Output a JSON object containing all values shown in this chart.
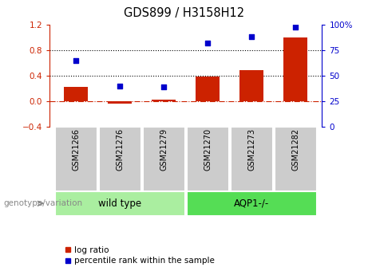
{
  "title": "GDS899 / H3158H12",
  "categories": [
    "GSM21266",
    "GSM21276",
    "GSM21279",
    "GSM21270",
    "GSM21273",
    "GSM21282"
  ],
  "log_ratio": [
    0.22,
    -0.04,
    0.02,
    0.38,
    0.48,
    1.0
  ],
  "percentile_rank": [
    65,
    40,
    39,
    82,
    88,
    98
  ],
  "bar_color": "#cc2200",
  "dot_color": "#0000cc",
  "ylim_left": [
    -0.4,
    1.2
  ],
  "ylim_right": [
    0,
    100
  ],
  "yticks_left": [
    -0.4,
    0.0,
    0.4,
    0.8,
    1.2
  ],
  "yticks_right": [
    0,
    25,
    50,
    75,
    100
  ],
  "hlines": [
    0.0,
    0.4,
    0.8
  ],
  "hline_styles": [
    "dashdot",
    "dotted",
    "dotted"
  ],
  "hline_colors": [
    "#cc2200",
    "#000000",
    "#000000"
  ],
  "group_labels": [
    "wild type",
    "AQP1-/-"
  ],
  "wt_color": "#aaeea0",
  "aqp_color": "#55dd55",
  "label_box_color": "#cccccc",
  "legend_log_ratio": "log ratio",
  "legend_percentile": "percentile rank within the sample",
  "genotype_label": "genotype/variation"
}
